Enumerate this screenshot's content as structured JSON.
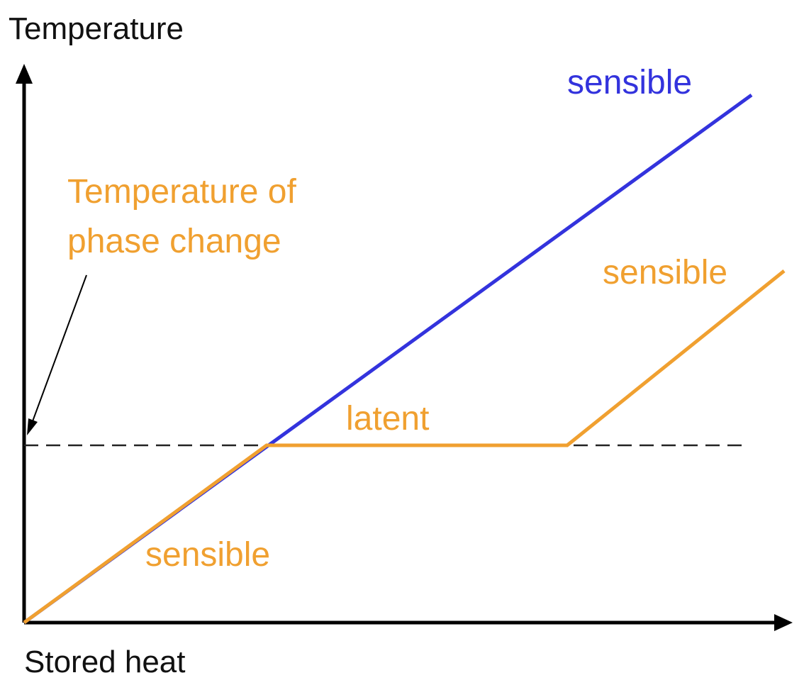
{
  "axes": {
    "y_label": "Temperature",
    "x_label": "Stored heat"
  },
  "labels": {
    "phase_change_line1": "Temperature of",
    "phase_change_line2": "phase change",
    "blue_sensible": "sensible",
    "orange_sensible_upper": "sensible",
    "latent": "latent",
    "orange_sensible_lower": "sensible"
  },
  "colors": {
    "axis": "#000000",
    "blue": "#3333dd",
    "orange": "#f0a030",
    "dashed": "#222222",
    "pointer": "#000000"
  },
  "icons": {
    "y_axis_head": "arrow-up-icon",
    "x_axis_head": "arrow-right-icon",
    "pointer_head": "arrow-pointer-icon"
  }
}
